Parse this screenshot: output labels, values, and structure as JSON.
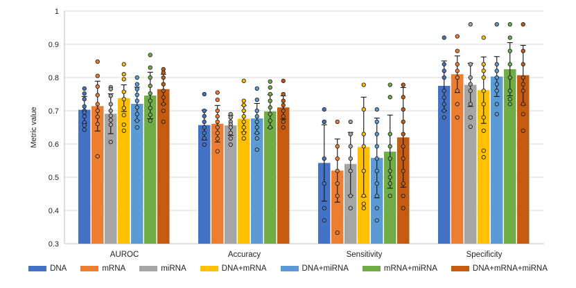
{
  "chart_data": {
    "type": "bar",
    "title": "",
    "xlabel": "",
    "ylabel": "Metric value",
    "ylim": [
      0.3,
      1.0
    ],
    "yticks": [
      "0.3",
      "0.4",
      "0.5",
      "0.6",
      "0.7",
      "0.8",
      "0.9",
      "1"
    ],
    "categories": [
      "AUROC",
      "Accuracy",
      "Sensitivity",
      "Specificity"
    ],
    "series": [
      {
        "name": "DNA",
        "color": "#4472C4",
        "values": [
          0.703,
          0.657,
          0.543,
          0.775
        ],
        "errors": [
          0.04,
          0.045,
          0.115,
          0.075
        ],
        "points": [
          [
            0.767,
            0.752,
            0.735,
            0.713,
            0.7,
            0.695,
            0.683,
            0.665,
            0.656,
            0.643
          ],
          [
            0.75,
            0.7,
            0.684,
            0.667,
            0.65,
            0.633,
            0.617,
            0.598
          ],
          [
            0.704,
            0.667,
            0.667,
            0.556,
            0.481,
            0.407,
            0.37
          ],
          [
            0.84,
            0.82,
            0.8,
            0.76,
            0.74,
            0.72,
            0.7,
            0.68,
            0.92
          ]
        ]
      },
      {
        "name": "mRNA",
        "color": "#ED7D31",
        "values": [
          0.714,
          0.661,
          0.52,
          0.81
        ],
        "errors": [
          0.075,
          0.055,
          0.095,
          0.055
        ],
        "points": [
          [
            0.848,
            0.805,
            0.773,
            0.747,
            0.72,
            0.7,
            0.682,
            0.66,
            0.563
          ],
          [
            0.755,
            0.733,
            0.7,
            0.683,
            0.667,
            0.65,
            0.633,
            0.616,
            0.578
          ],
          [
            0.667,
            0.593,
            0.556,
            0.519,
            0.481,
            0.444,
            0.333
          ],
          [
            0.924,
            0.88,
            0.84,
            0.82,
            0.8,
            0.76,
            0.72,
            0.68
          ]
        ]
      },
      {
        "name": "miRNA",
        "color": "#A5A5A5",
        "values": [
          0.691,
          0.656,
          0.54,
          0.778
        ],
        "errors": [
          0.06,
          0.03,
          0.095,
          0.065
        ],
        "points": [
          [
            0.771,
            0.765,
            0.745,
            0.72,
            0.7,
            0.685,
            0.672,
            0.658,
            0.606
          ],
          [
            0.69,
            0.68,
            0.667,
            0.659,
            0.65,
            0.633,
            0.617,
            0.598
          ],
          [
            0.667,
            0.63,
            0.593,
            0.556,
            0.519,
            0.444,
            0.407
          ],
          [
            0.96,
            0.84,
            0.8,
            0.78,
            0.76,
            0.72,
            0.68,
            0.652
          ]
        ]
      },
      {
        "name": "DNA+mRNA",
        "color": "#FFC000",
        "values": [
          0.738,
          0.676,
          0.591,
          0.762
        ],
        "errors": [
          0.04,
          0.04,
          0.15,
          0.1
        ],
        "points": [
          [
            0.84,
            0.81,
            0.795,
            0.757,
            0.735,
            0.708,
            0.687,
            0.658,
            0.64
          ],
          [
            0.79,
            0.73,
            0.717,
            0.7,
            0.683,
            0.667,
            0.65,
            0.633,
            0.617
          ],
          [
            0.778,
            0.704,
            0.63,
            0.593,
            0.519,
            0.444,
            0.42,
            0.407
          ],
          [
            0.92,
            0.84,
            0.82,
            0.8,
            0.76,
            0.72,
            0.68,
            0.64,
            0.58,
            0.56
          ]
        ]
      },
      {
        "name": "DNA+miRNA",
        "color": "#5B9BD5",
        "values": [
          0.721,
          0.677,
          0.558,
          0.803
        ],
        "errors": [
          0.05,
          0.045,
          0.12,
          0.06
        ],
        "points": [
          [
            0.8,
            0.78,
            0.765,
            0.748,
            0.73,
            0.71,
            0.69,
            0.67,
            0.65
          ],
          [
            0.767,
            0.733,
            0.7,
            0.683,
            0.667,
            0.65,
            0.633,
            0.617,
            0.583
          ],
          [
            0.704,
            0.667,
            0.63,
            0.593,
            0.556,
            0.519,
            0.481,
            0.444,
            0.407,
            0.37
          ],
          [
            0.96,
            0.84,
            0.82,
            0.8,
            0.78,
            0.76,
            0.72,
            0.69
          ]
        ]
      },
      {
        "name": "mRNA+miRNA",
        "color": "#70AD47",
        "values": [
          0.746,
          0.698,
          0.577,
          0.825
        ],
        "errors": [
          0.07,
          0.05,
          0.11,
          0.08
        ],
        "points": [
          [
            0.868,
            0.83,
            0.8,
            0.775,
            0.752,
            0.73,
            0.708,
            0.688,
            0.67
          ],
          [
            0.788,
            0.77,
            0.75,
            0.73,
            0.71,
            0.69,
            0.67,
            0.65
          ],
          [
            0.778,
            0.741,
            0.63,
            0.593,
            0.556,
            0.519,
            0.5,
            0.481,
            0.444
          ],
          [
            0.96,
            0.92,
            0.88,
            0.84,
            0.8,
            0.76,
            0.735,
            0.72
          ]
        ]
      },
      {
        "name": "DNA+mRNA+miRNA",
        "color": "#C55A11",
        "values": [
          0.765,
          0.71,
          0.62,
          0.807
        ],
        "errors": [
          0.045,
          0.035,
          0.15,
          0.09
        ],
        "points": [
          [
            0.825,
            0.815,
            0.8,
            0.78,
            0.76,
            0.74,
            0.72,
            0.7,
            0.667
          ],
          [
            0.79,
            0.75,
            0.73,
            0.717,
            0.7,
            0.683,
            0.667,
            0.65
          ],
          [
            0.778,
            0.741,
            0.704,
            0.667,
            0.63,
            0.593,
            0.556,
            0.519,
            0.481,
            0.444,
            0.407
          ],
          [
            0.96,
            0.88,
            0.84,
            0.8,
            0.78,
            0.76,
            0.72,
            0.69,
            0.64
          ]
        ]
      }
    ]
  }
}
